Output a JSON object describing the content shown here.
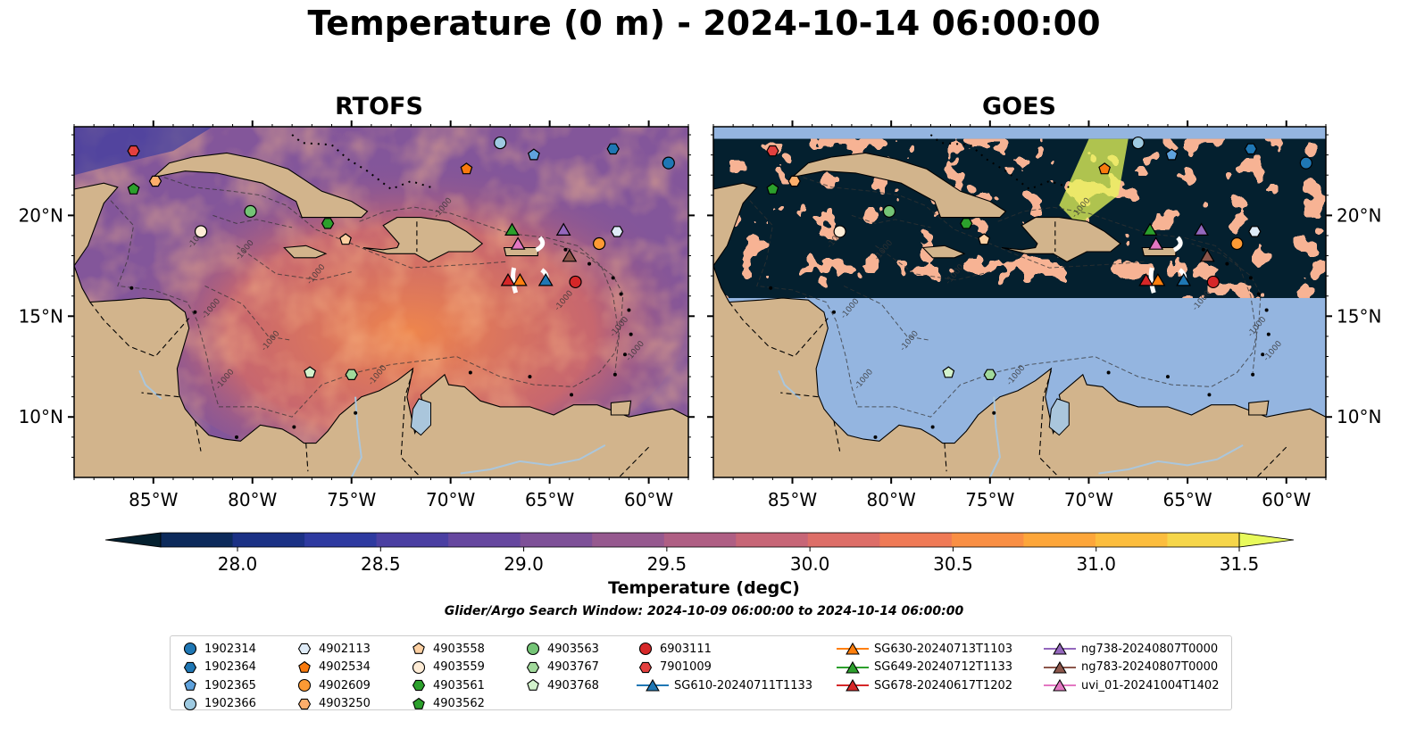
{
  "title": "Temperature (0 m) - 2024-10-14 06:00:00",
  "panels": [
    {
      "title": "RTOFS",
      "kind": "model"
    },
    {
      "title": "GOES",
      "kind": "satellite"
    }
  ],
  "chart_data": {
    "type": "heatmap",
    "title": "Temperature (0 m) - 2024-10-14 06:00:00",
    "lon_range": [
      -89,
      -58
    ],
    "lat_range": [
      7,
      24.4
    ],
    "x_ticks": [
      "85°W",
      "80°W",
      "75°W",
      "70°W",
      "65°W",
      "60°W"
    ],
    "x_tick_values": [
      -85,
      -80,
      -75,
      -70,
      -65,
      -60
    ],
    "y_ticks": [
      "10°N",
      "15°N",
      "20°N"
    ],
    "y_tick_values": [
      10,
      15,
      20
    ],
    "colorbar": {
      "label": "Temperature (degC)",
      "min": 28.0,
      "max": 31.5,
      "step": 0.25,
      "ticks": [
        "28.0",
        "28.5",
        "29.0",
        "29.5",
        "30.0",
        "30.5",
        "31.0",
        "31.5"
      ],
      "tick_values": [
        28.0,
        28.5,
        29.0,
        29.5,
        30.0,
        30.5,
        31.0,
        31.5
      ],
      "extend": "both",
      "colors": [
        "#04202f",
        "#0c2a5b",
        "#1b3185",
        "#2e3aa0",
        "#4b3fa2",
        "#66479f",
        "#7e5198",
        "#96598f",
        "#af5f84",
        "#c76677",
        "#dd6e68",
        "#ef7a56",
        "#f98f44",
        "#fda63a",
        "#fcbd3d",
        "#f6d64a",
        "#e8fa5b"
      ]
    },
    "contour_label": "-1000",
    "goes_swath_lat": [
      15.9,
      23.8
    ],
    "search_window": "Glider/Argo Search Window: 2024-10-09 06:00:00 to 2024-10-14 06:00:00",
    "platforms": [
      {
        "name": "1902314",
        "marker": "circle",
        "color": "#1f77b4",
        "lon": -59.0,
        "lat": 22.6
      },
      {
        "name": "1902364",
        "marker": "hexagon",
        "color": "#1f77b4",
        "lon": -61.8,
        "lat": 23.3
      },
      {
        "name": "1902365",
        "marker": "pentagon",
        "color": "#5fa2dd",
        "lon": -65.8,
        "lat": 23.0
      },
      {
        "name": "1902366",
        "marker": "circle",
        "color": "#9ecae1",
        "lon": -67.5,
        "lat": 23.6
      },
      {
        "name": "4902113",
        "marker": "hexagon",
        "color": "#deebf7",
        "lon": -61.6,
        "lat": 19.2
      },
      {
        "name": "4902534",
        "marker": "pentagon",
        "color": "#f97a0e",
        "lon": -69.2,
        "lat": 22.3
      },
      {
        "name": "4902609",
        "marker": "circle",
        "color": "#fd9a34",
        "lon": -62.5,
        "lat": 18.6
      },
      {
        "name": "4903250",
        "marker": "hexagon",
        "color": "#fdae6b",
        "lon": -84.9,
        "lat": 21.7
      },
      {
        "name": "4903558",
        "marker": "pentagon",
        "color": "#fdd0a2",
        "lon": -75.3,
        "lat": 18.8
      },
      {
        "name": "4903559",
        "marker": "circle",
        "color": "#feecd6",
        "lon": -82.6,
        "lat": 19.2
      },
      {
        "name": "4903561",
        "marker": "hexagon",
        "color": "#2ca02c",
        "lon": -76.2,
        "lat": 19.6
      },
      {
        "name": "4903562",
        "marker": "pentagon",
        "color": "#2ca02c",
        "lon": -86.0,
        "lat": 21.3
      },
      {
        "name": "4903563",
        "marker": "circle",
        "color": "#74c476",
        "lon": -80.1,
        "lat": 20.2
      },
      {
        "name": "4903767",
        "marker": "hexagon",
        "color": "#a1d99b",
        "lon": -75.0,
        "lat": 12.1
      },
      {
        "name": "4903768",
        "marker": "pentagon",
        "color": "#d3f2cc",
        "lon": -77.1,
        "lat": 12.2
      },
      {
        "name": "6903111",
        "marker": "circle",
        "color": "#d62728",
        "lon": -63.7,
        "lat": 16.7
      },
      {
        "name": "7901009",
        "marker": "hexagon",
        "color": "#e3403f",
        "lon": -86.0,
        "lat": 23.2
      },
      {
        "name": "SG610-20240711T1133",
        "marker": "triangle",
        "color": "#1f77b4",
        "line": true,
        "lon": -65.2,
        "lat": 16.8
      },
      {
        "name": "SG630-20240713T1103",
        "marker": "triangle",
        "color": "#ff7f0e",
        "line": true,
        "lon": -66.5,
        "lat": 16.8
      },
      {
        "name": "SG649-20240712T1133",
        "marker": "triangle",
        "color": "#2ca02c",
        "line": true,
        "lon": -66.9,
        "lat": 19.3
      },
      {
        "name": "SG678-20240617T1202",
        "marker": "triangle",
        "color": "#d62728",
        "line": true,
        "lon": -67.1,
        "lat": 16.8
      },
      {
        "name": "ng738-20240807T0000",
        "marker": "triangle",
        "color": "#9467bd",
        "line": true,
        "lon": -64.3,
        "lat": 19.3
      },
      {
        "name": "ng783-20240807T0000",
        "marker": "triangle",
        "color": "#8c564b",
        "line": true,
        "lon": -64.0,
        "lat": 18.0
      },
      {
        "name": "uvi_01-20241004T1402",
        "marker": "triangle",
        "color": "#e377c2",
        "line": true,
        "lon": -66.6,
        "lat": 18.6
      }
    ]
  },
  "colors": {
    "land": "#d2b48c",
    "no_data": "#94b5e0",
    "river": "#aac6dc",
    "coast": "#000000"
  }
}
